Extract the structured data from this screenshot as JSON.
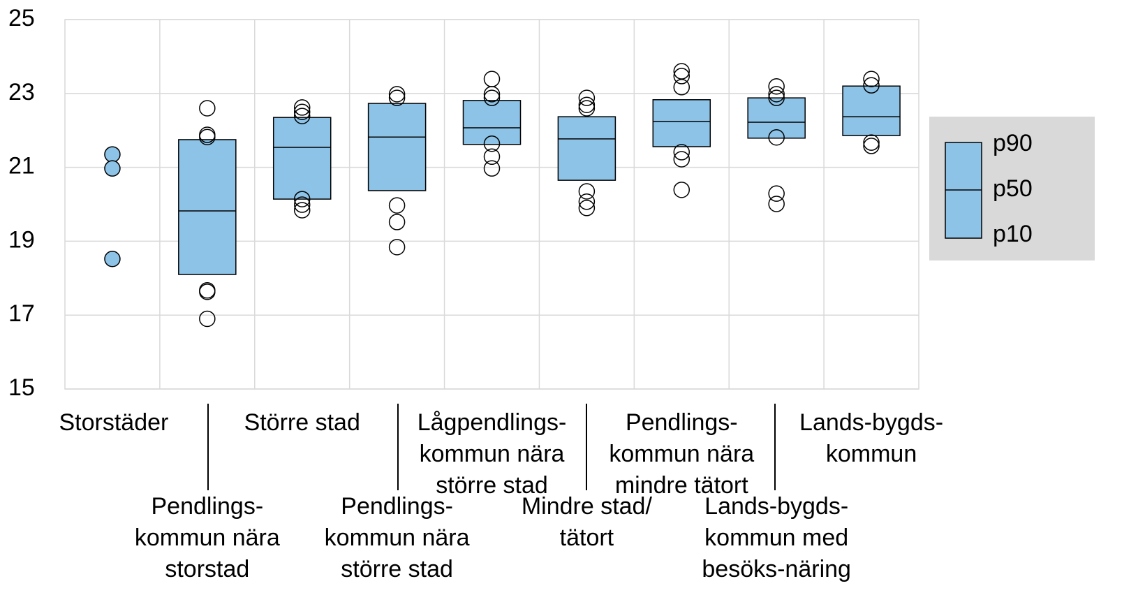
{
  "chart_data": {
    "type": "box",
    "categories": [
      [
        "Storstäder"
      ],
      [
        "Pendlings-",
        "kommun nära",
        "storstad"
      ],
      [
        "Större stad"
      ],
      [
        "Pendlings-",
        "kommun nära",
        "större stad"
      ],
      [
        "Lågpendlings-",
        "kommun nära",
        "större stad"
      ],
      [
        "Mindre stad/",
        "tätort"
      ],
      [
        "Pendlings-",
        "kommun nära",
        "mindre tätort"
      ],
      [
        "Lands-bygds-",
        "kommun med",
        "besöks-näring"
      ],
      [
        "Lands-bygds-",
        "kommun"
      ]
    ],
    "p10": [
      null,
      18.1,
      20.14,
      20.37,
      21.62,
      20.65,
      21.56,
      21.79,
      21.86
    ],
    "p50": [
      null,
      19.82,
      21.54,
      21.82,
      22.07,
      21.77,
      22.24,
      22.22,
      22.37
    ],
    "p90": [
      null,
      21.75,
      22.35,
      22.73,
      22.81,
      22.37,
      22.83,
      22.88,
      23.2
    ],
    "points": [
      [
        21.35,
        20.97,
        18.52
      ],
      [
        22.6,
        21.88,
        21.82,
        17.67,
        17.63,
        16.9
      ],
      [
        22.62,
        22.5,
        22.39,
        20.14,
        19.99,
        19.84
      ],
      [
        22.98,
        22.88,
        19.97,
        19.52,
        18.84
      ],
      [
        23.39,
        22.98,
        22.88,
        21.64,
        21.29,
        20.97
      ],
      [
        22.88,
        22.69,
        22.6,
        20.35,
        20.07,
        19.9
      ],
      [
        23.6,
        23.47,
        23.17,
        21.41,
        21.22,
        20.39
      ],
      [
        23.19,
        22.98,
        22.88,
        21.81,
        20.29,
        20.01
      ],
      [
        23.39,
        23.22,
        21.67,
        21.58
      ]
    ],
    "filled_points": [
      true,
      false,
      false,
      false,
      false,
      false,
      false,
      false,
      false
    ],
    "color": "#8dc3e7",
    "ylim": [
      15,
      25
    ],
    "yticks": [
      15,
      17,
      19,
      21,
      23,
      25
    ],
    "grid": true,
    "legend": {
      "labels": [
        "p90",
        "p50",
        "p10"
      ],
      "position": "right"
    }
  }
}
